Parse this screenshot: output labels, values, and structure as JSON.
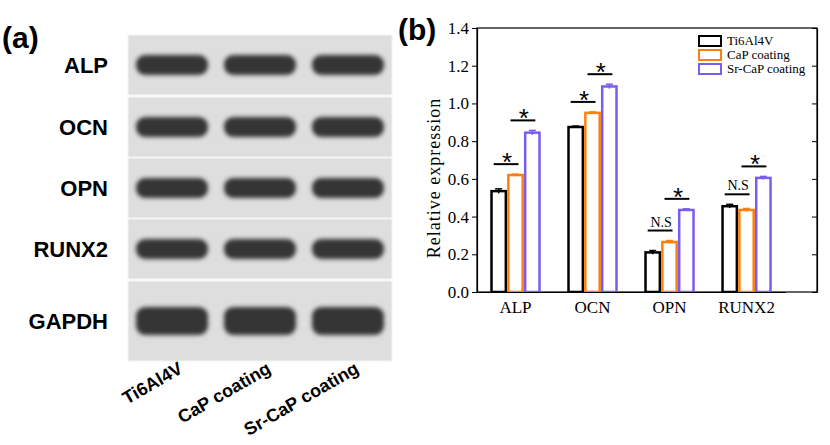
{
  "panel_a": {
    "label": "(a)",
    "rows": [
      "ALP",
      "OCN",
      "OPN",
      "RUNX2",
      "GAPDH"
    ],
    "lanes": [
      "Ti6Al4V",
      "CaP coating",
      "Sr-CaP coating"
    ]
  },
  "panel_b": {
    "label": "(b)"
  },
  "chart_data": {
    "type": "bar",
    "ylabel": "Relative expression",
    "categories": [
      "ALP",
      "OCN",
      "OPN",
      "RUNX2"
    ],
    "series": [
      {
        "name": "Ti6Al4V",
        "color": "#000000",
        "values": [
          0.535,
          0.875,
          0.21,
          0.455
        ],
        "errors": [
          0.012,
          0.005,
          0.01,
          0.01
        ]
      },
      {
        "name": "CaP coating",
        "color": "#ff7f0e",
        "values": [
          0.62,
          0.95,
          0.265,
          0.435
        ],
        "errors": [
          0.005,
          0.005,
          0.008,
          0.008
        ]
      },
      {
        "name": "Sr-CaP coating",
        "color": "#7b5cf0",
        "values": [
          0.845,
          1.09,
          0.435,
          0.605
        ],
        "errors": [
          0.012,
          0.012,
          0.006,
          0.008
        ]
      }
    ],
    "ylim": [
      0,
      1.4
    ],
    "yticks": [
      {
        "value": 0,
        "label": "0.0"
      },
      0.2,
      0.4,
      0.6,
      0.8,
      {
        "value": 1,
        "label": "1.0"
      },
      1.2,
      1.4
    ],
    "legend": "upper right",
    "annotations": [
      {
        "category": "ALP",
        "pair": [
          "Ti6Al4V",
          "CaP coating"
        ],
        "text": "*"
      },
      {
        "category": "ALP",
        "pair": [
          "CaP coating",
          "Sr-CaP coating"
        ],
        "text": "*"
      },
      {
        "category": "OCN",
        "pair": [
          "Ti6Al4V",
          "CaP coating"
        ],
        "text": "*"
      },
      {
        "category": "OCN",
        "pair": [
          "CaP coating",
          "Sr-CaP coating"
        ],
        "text": "*"
      },
      {
        "category": "OPN",
        "pair": [
          "Ti6Al4V",
          "CaP coating"
        ],
        "text": "N.S"
      },
      {
        "category": "OPN",
        "pair": [
          "CaP coating",
          "Sr-CaP coating"
        ],
        "text": "*"
      },
      {
        "category": "RUNX2",
        "pair": [
          "Ti6Al4V",
          "CaP coating"
        ],
        "text": "N.S"
      },
      {
        "category": "RUNX2",
        "pair": [
          "CaP coating",
          "Sr-CaP coating"
        ],
        "text": "*"
      }
    ]
  }
}
